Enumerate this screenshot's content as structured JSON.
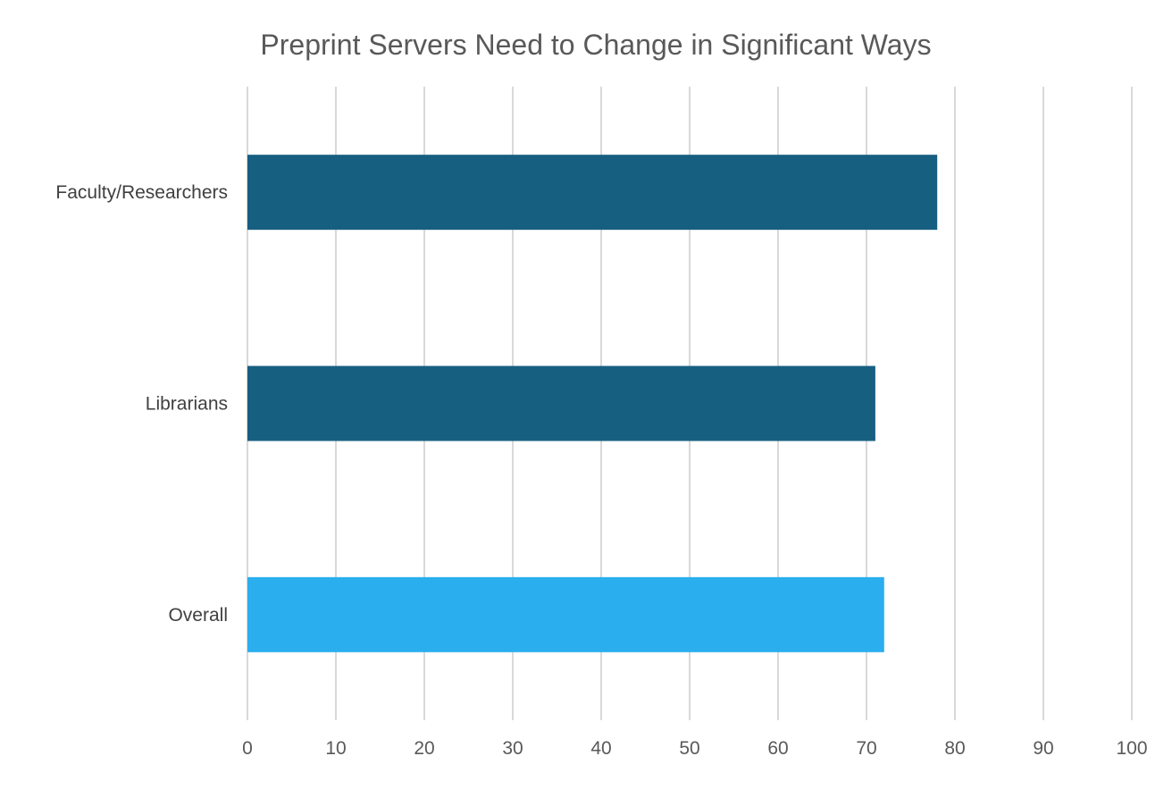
{
  "chart_data": {
    "type": "bar",
    "orientation": "horizontal",
    "title": "Preprint Servers Need to Change in Significant Ways",
    "xlabel": "",
    "ylabel": "",
    "categories": [
      "Faculty/Researchers",
      "Librarians",
      "Overall"
    ],
    "values": [
      78,
      71,
      72
    ],
    "bar_colors": [
      "#175f81",
      "#175f81",
      "#2aaeee"
    ],
    "xlim": [
      0,
      100
    ],
    "xticks": [
      0,
      10,
      20,
      30,
      40,
      50,
      60,
      70,
      80,
      90,
      100
    ],
    "grid": true,
    "legend": "none"
  }
}
